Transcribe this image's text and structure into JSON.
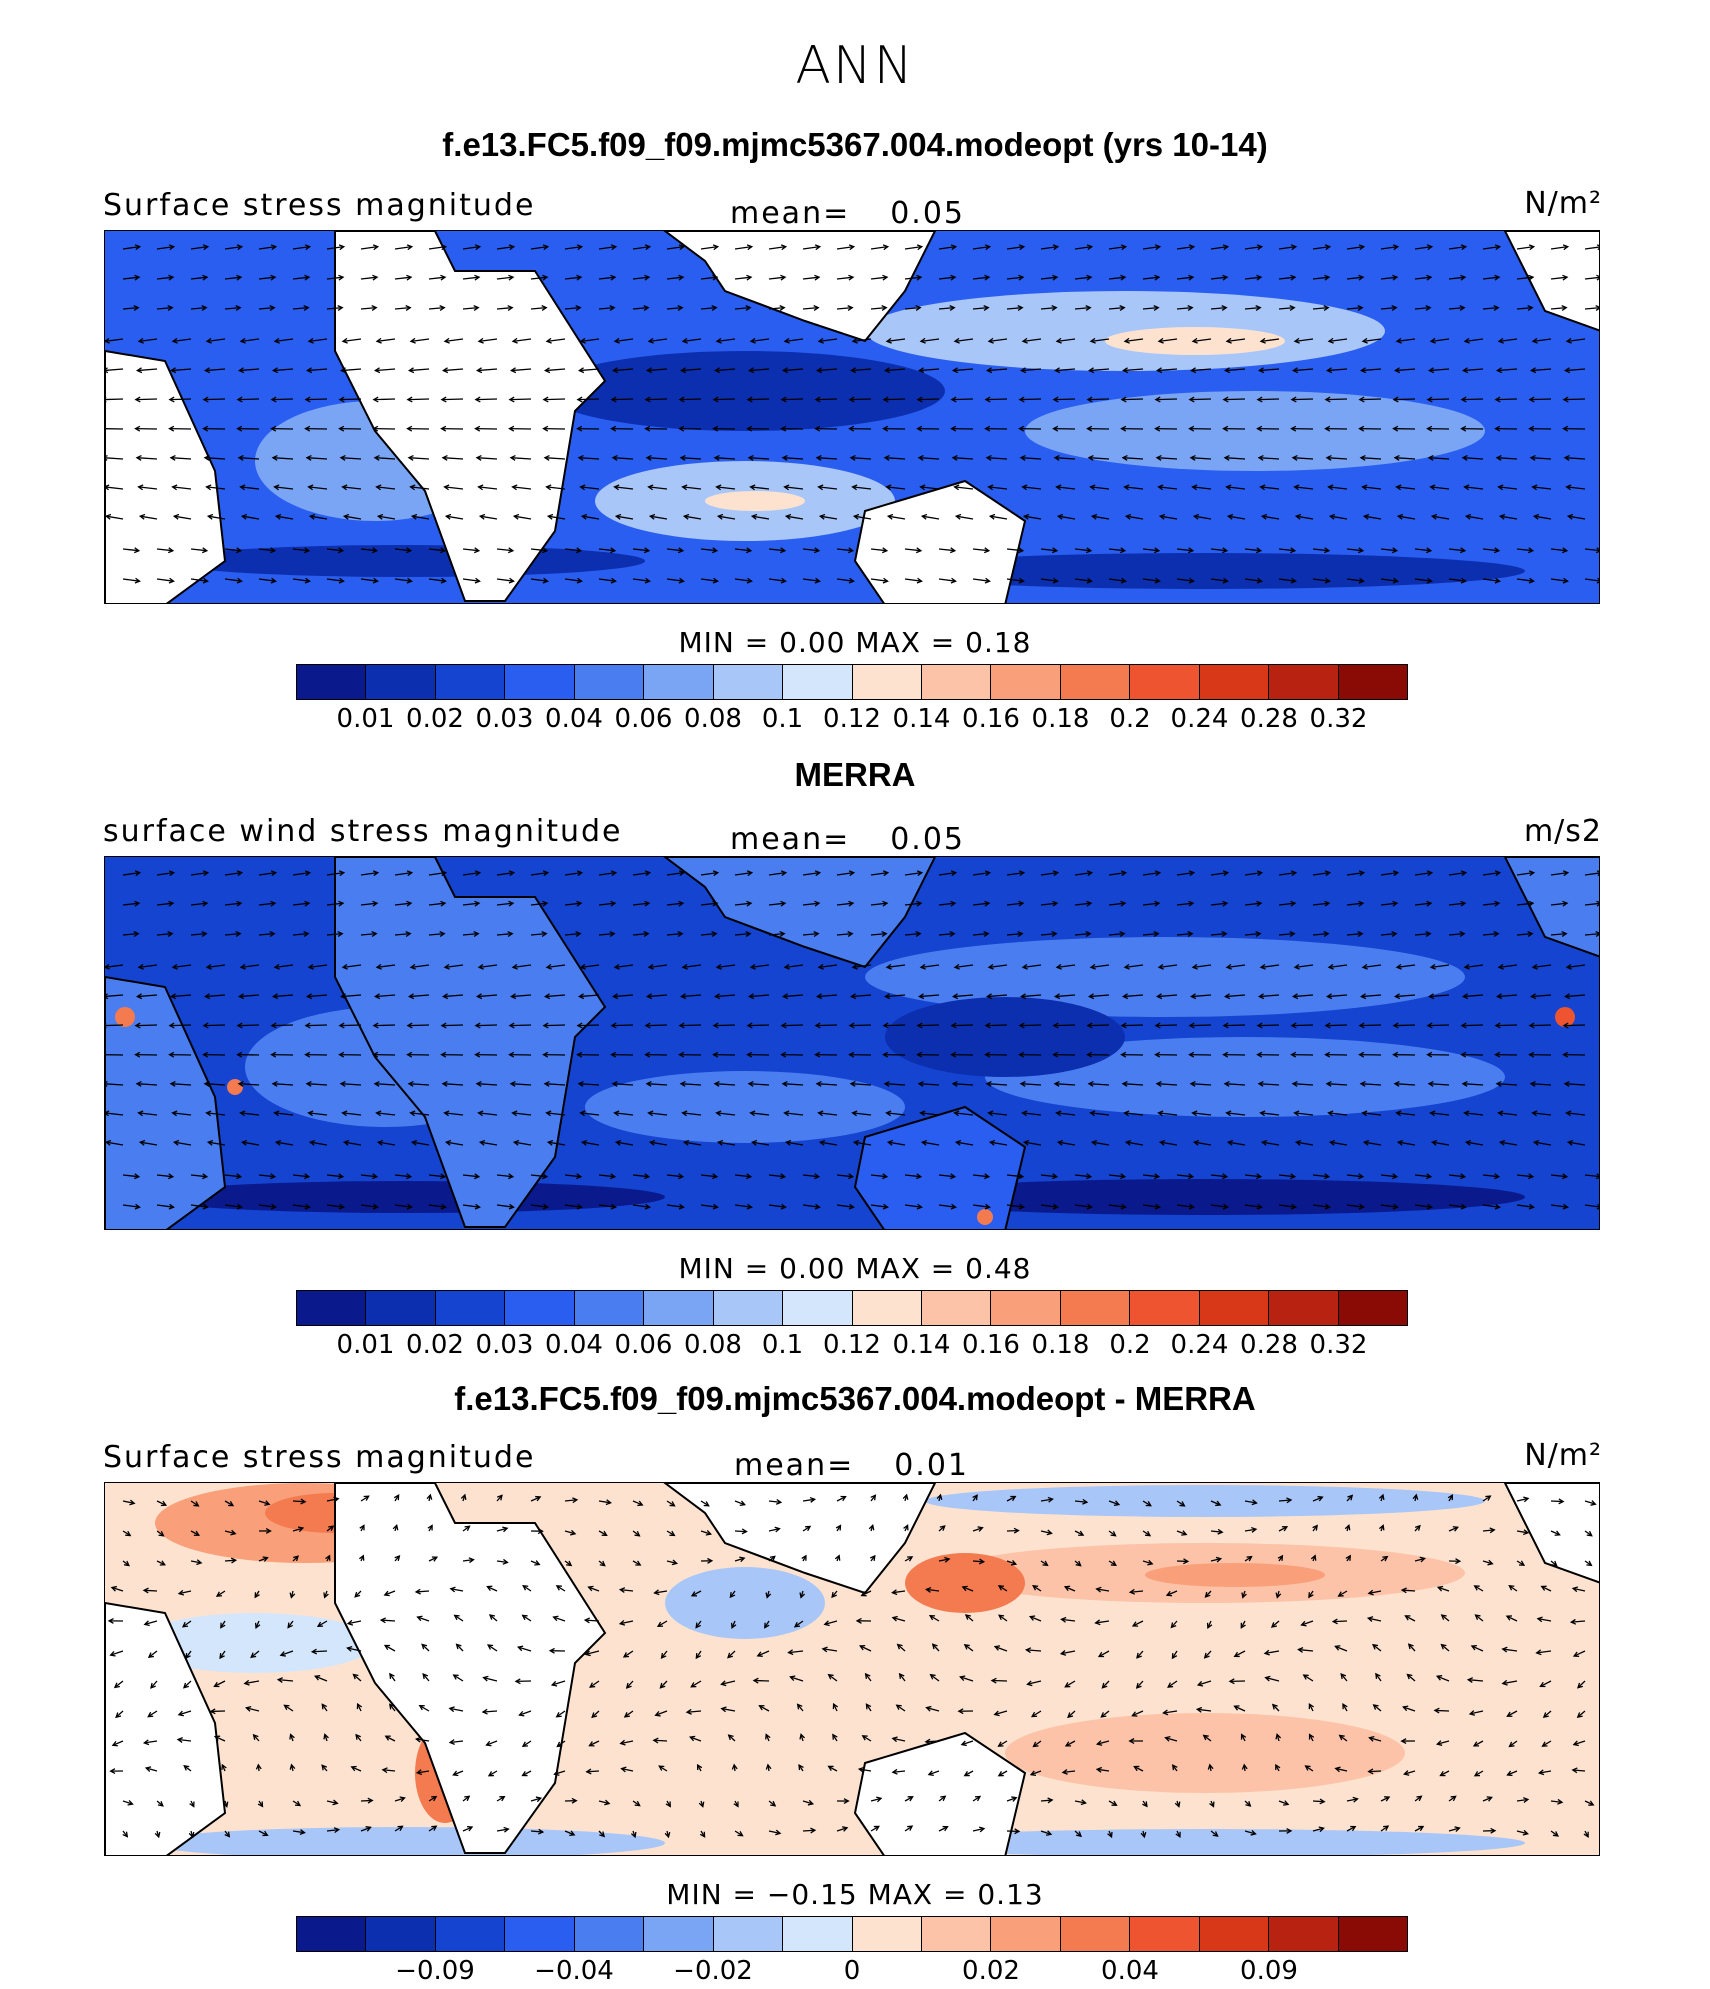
{
  "figure_title": "ANN",
  "panels": [
    {
      "case_title": "f.e13.FC5.f09_f09.mjmc5367.004.modeopt (yrs 10-14)",
      "variable_label": "Surface stress magnitude",
      "mean_label": "mean=",
      "mean_value": "0.05",
      "units": "N/m²",
      "minmax_label": "MIN =     0.00  MAX =     0.18",
      "colorbar_ticks": [
        "0.01",
        "0.02",
        "0.03",
        "0.04",
        "0.06",
        "0.08",
        "0.1",
        "0.12",
        "0.14",
        "0.16",
        "0.18",
        "0.2",
        "0.24",
        "0.28",
        "0.32"
      ]
    },
    {
      "case_title": "MERRA",
      "variable_label": "surface wind stress magnitude",
      "mean_label": "mean=",
      "mean_value": "0.05",
      "units": "m/s2",
      "minmax_label": "MIN =     0.00  MAX =     0.48",
      "colorbar_ticks": [
        "0.01",
        "0.02",
        "0.03",
        "0.04",
        "0.06",
        "0.08",
        "0.1",
        "0.12",
        "0.14",
        "0.16",
        "0.18",
        "0.2",
        "0.24",
        "0.28",
        "0.32"
      ]
    },
    {
      "case_title": "f.e13.FC5.f09_f09.mjmc5367.004.modeopt - MERRA",
      "variable_label": "Surface stress magnitude",
      "mean_label": "mean=",
      "mean_value": "0.01",
      "units": "N/m²",
      "minmax_label": "MIN =  −0.15  MAX =     0.13",
      "colorbar_ticks": [
        "−0.09",
        "−0.04",
        "−0.02",
        "0",
        "0.02",
        "0.04",
        "0.09"
      ]
    }
  ],
  "colors": {
    "colorbar": [
      "#0a1a8c",
      "#0c2fb0",
      "#1444d0",
      "#2a5ef0",
      "#4a7ef0",
      "#7aa4f4",
      "#a8c6f8",
      "#d4e6fb",
      "#fde3cf",
      "#fcc3a8",
      "#f9a07a",
      "#f47a50",
      "#ee5430",
      "#d83818",
      "#b82210",
      "#8a0a06"
    ],
    "land": "#ffffff",
    "coast": "#000000"
  }
}
